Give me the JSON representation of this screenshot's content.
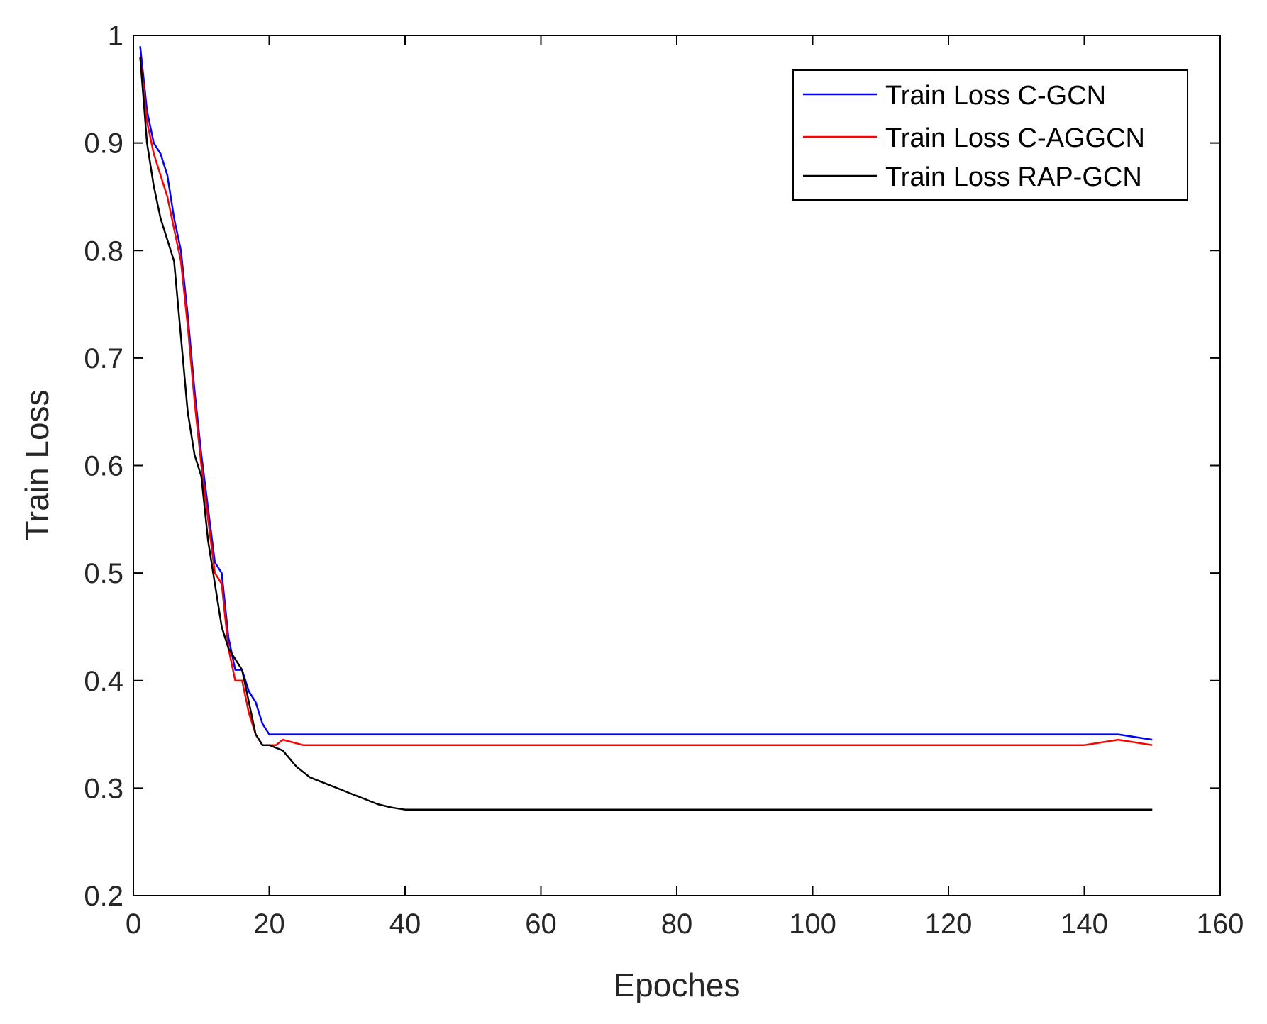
{
  "chart_data": {
    "type": "line",
    "title": "",
    "xlabel": "Epoches",
    "ylabel": "Train Loss",
    "xlim": [
      0,
      160
    ],
    "ylim": [
      0.2,
      1.0
    ],
    "xticks": [
      "0",
      "20",
      "40",
      "60",
      "80",
      "100",
      "120",
      "140",
      "160"
    ],
    "yticks": [
      "0.2",
      "0.3",
      "0.4",
      "0.5",
      "0.6",
      "0.7",
      "0.8",
      "0.9",
      "1"
    ],
    "grid": false,
    "legend_position": "top-right",
    "series": [
      {
        "name": "Train Loss C-GCN",
        "color": "#0000ff",
        "x": [
          1,
          2,
          3,
          4,
          5,
          6,
          7,
          8,
          9,
          10,
          11,
          12,
          13,
          14,
          15,
          16,
          17,
          18,
          19,
          20,
          21,
          22,
          25,
          30,
          35,
          40,
          45,
          50,
          60,
          70,
          80,
          90,
          100,
          110,
          120,
          130,
          140,
          145,
          150
        ],
        "y": [
          0.99,
          0.93,
          0.9,
          0.89,
          0.87,
          0.83,
          0.8,
          0.74,
          0.67,
          0.61,
          0.56,
          0.51,
          0.5,
          0.44,
          0.41,
          0.41,
          0.39,
          0.38,
          0.36,
          0.35,
          0.35,
          0.35,
          0.35,
          0.35,
          0.35,
          0.35,
          0.35,
          0.35,
          0.35,
          0.35,
          0.35,
          0.35,
          0.35,
          0.35,
          0.35,
          0.35,
          0.35,
          0.35,
          0.345
        ]
      },
      {
        "name": "Train Loss C-AGGCN",
        "color": "#ff0000",
        "x": [
          1,
          2,
          3,
          4,
          5,
          6,
          7,
          8,
          9,
          10,
          11,
          12,
          13,
          14,
          15,
          16,
          17,
          18,
          19,
          20,
          21,
          22,
          25,
          30,
          35,
          40,
          45,
          50,
          60,
          70,
          80,
          90,
          100,
          110,
          120,
          130,
          140,
          145,
          150
        ],
        "y": [
          0.98,
          0.92,
          0.89,
          0.87,
          0.85,
          0.82,
          0.79,
          0.73,
          0.66,
          0.6,
          0.55,
          0.5,
          0.49,
          0.43,
          0.4,
          0.4,
          0.37,
          0.35,
          0.34,
          0.34,
          0.34,
          0.345,
          0.34,
          0.34,
          0.34,
          0.34,
          0.34,
          0.34,
          0.34,
          0.34,
          0.34,
          0.34,
          0.34,
          0.34,
          0.34,
          0.34,
          0.34,
          0.345,
          0.34
        ]
      },
      {
        "name": "Train Loss RAP-GCN",
        "color": "#000000",
        "x": [
          1,
          2,
          3,
          4,
          5,
          6,
          7,
          8,
          9,
          10,
          11,
          12,
          13,
          14,
          15,
          16,
          17,
          18,
          19,
          20,
          22,
          24,
          26,
          28,
          30,
          32,
          34,
          36,
          38,
          40,
          45,
          50,
          60,
          70,
          80,
          90,
          100,
          110,
          120,
          130,
          140,
          145,
          150
        ],
        "y": [
          0.98,
          0.9,
          0.86,
          0.83,
          0.81,
          0.79,
          0.72,
          0.65,
          0.61,
          0.59,
          0.53,
          0.49,
          0.45,
          0.43,
          0.42,
          0.41,
          0.38,
          0.35,
          0.34,
          0.34,
          0.335,
          0.32,
          0.31,
          0.305,
          0.3,
          0.295,
          0.29,
          0.285,
          0.282,
          0.28,
          0.28,
          0.28,
          0.28,
          0.28,
          0.28,
          0.28,
          0.28,
          0.28,
          0.28,
          0.28,
          0.28,
          0.28,
          0.28
        ]
      }
    ]
  }
}
